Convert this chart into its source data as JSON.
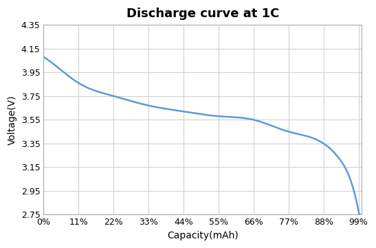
{
  "title": "Discharge curve at 1C",
  "xlabel": "Capacity(mAh)",
  "ylabel": "Voltage(V)",
  "x_tick_labels": [
    "0%",
    "11%",
    "22%",
    "33%",
    "44%",
    "55%",
    "66%",
    "77%",
    "88%",
    "99%"
  ],
  "x_tick_positions": [
    0,
    0.11,
    0.22,
    0.33,
    0.44,
    0.55,
    0.66,
    0.77,
    0.88,
    0.99
  ],
  "ylim": [
    2.75,
    4.35
  ],
  "yticks": [
    2.75,
    2.95,
    3.15,
    3.35,
    3.55,
    3.75,
    3.95,
    4.15,
    4.35
  ],
  "xlim": [
    0,
    1.0
  ],
  "line_color": "#5B9BD5",
  "line_width": 1.8,
  "bg_color": "#FFFFFF",
  "grid_color": "#D0D0D0",
  "title_fontsize": 13,
  "label_fontsize": 10,
  "control_x": [
    0.0,
    0.05,
    0.11,
    0.22,
    0.33,
    0.44,
    0.55,
    0.66,
    0.77,
    0.88,
    0.93,
    0.97,
    0.99
  ],
  "control_y": [
    4.08,
    3.98,
    3.86,
    3.75,
    3.67,
    3.62,
    3.58,
    3.55,
    3.45,
    3.35,
    3.22,
    3.0,
    2.78
  ]
}
